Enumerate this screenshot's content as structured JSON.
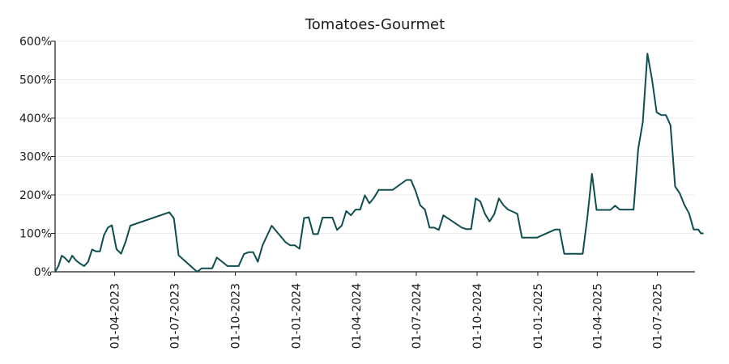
{
  "chart_data": {
    "type": "line",
    "title": "Tomatoes-Gourmet",
    "xlabel": "",
    "ylabel": "",
    "x_range": [
      "2023-01-01",
      "2025-08-27"
    ],
    "ylim": [
      0,
      600
    ],
    "y_ticks": [
      0,
      100,
      200,
      300,
      400,
      500,
      600
    ],
    "y_tick_labels": [
      "0%",
      "100%",
      "200%",
      "300%",
      "400%",
      "500%",
      "600%"
    ],
    "x_ticks": [
      "2023-04-01",
      "2023-07-01",
      "2023-10-01",
      "2024-01-01",
      "2024-04-01",
      "2024-07-01",
      "2024-10-01",
      "2025-01-01",
      "2025-04-01",
      "2025-07-01"
    ],
    "x_tick_labels": [
      "01-04-2023",
      "01-07-2023",
      "01-10-2023",
      "01-01-2024",
      "01-04-2024",
      "01-07-2024",
      "01-10-2024",
      "01-01-2025",
      "01-04-2025",
      "01-07-2025"
    ],
    "grid": true,
    "color": "#0f4d4f",
    "series": [
      {
        "points": [
          [
            "2023-01-01",
            0
          ],
          [
            "2023-01-06",
            15
          ],
          [
            "2023-01-11",
            42
          ],
          [
            "2023-01-16",
            36
          ],
          [
            "2023-01-22",
            25
          ],
          [
            "2023-01-27",
            42
          ],
          [
            "2023-02-02",
            29
          ],
          [
            "2023-02-08",
            21
          ],
          [
            "2023-02-14",
            15
          ],
          [
            "2023-02-20",
            26
          ],
          [
            "2023-02-26",
            58
          ],
          [
            "2023-03-04",
            53
          ],
          [
            "2023-03-10",
            53
          ],
          [
            "2023-03-16",
            95
          ],
          [
            "2023-03-22",
            115
          ],
          [
            "2023-03-28",
            121
          ],
          [
            "2023-04-04",
            59
          ],
          [
            "2023-04-11",
            47
          ],
          [
            "2023-04-18",
            79
          ],
          [
            "2023-04-25",
            120
          ],
          [
            "2023-06-23",
            155
          ],
          [
            "2023-06-30",
            139
          ],
          [
            "2023-07-07",
            43
          ],
          [
            "2023-08-04",
            0
          ],
          [
            "2023-08-11",
            9
          ],
          [
            "2023-08-27",
            9
          ],
          [
            "2023-09-03",
            37
          ],
          [
            "2023-09-19",
            15
          ],
          [
            "2023-10-06",
            15
          ],
          [
            "2023-10-14",
            46
          ],
          [
            "2023-10-21",
            51
          ],
          [
            "2023-10-28",
            51
          ],
          [
            "2023-11-04",
            26
          ],
          [
            "2023-11-11",
            68
          ],
          [
            "2023-11-25",
            120
          ],
          [
            "2023-12-16",
            77
          ],
          [
            "2023-12-23",
            69
          ],
          [
            "2023-12-30",
            69
          ],
          [
            "2024-01-06",
            60
          ],
          [
            "2024-01-13",
            140
          ],
          [
            "2024-01-20",
            142
          ],
          [
            "2024-01-27",
            98
          ],
          [
            "2024-02-03",
            98
          ],
          [
            "2024-02-10",
            141
          ],
          [
            "2024-02-25",
            141
          ],
          [
            "2024-03-03",
            109
          ],
          [
            "2024-03-10",
            120
          ],
          [
            "2024-03-17",
            158
          ],
          [
            "2024-03-24",
            147
          ],
          [
            "2024-03-31",
            162
          ],
          [
            "2024-04-07",
            162
          ],
          [
            "2024-04-14",
            199
          ],
          [
            "2024-04-21",
            178
          ],
          [
            "2024-04-28",
            193
          ],
          [
            "2024-05-05",
            213
          ],
          [
            "2024-05-26",
            213
          ],
          [
            "2024-06-16",
            239
          ],
          [
            "2024-06-23",
            239
          ],
          [
            "2024-06-30",
            210
          ],
          [
            "2024-07-07",
            173
          ],
          [
            "2024-07-14",
            162
          ],
          [
            "2024-07-21",
            115
          ],
          [
            "2024-07-28",
            115
          ],
          [
            "2024-08-04",
            109
          ],
          [
            "2024-08-11",
            147
          ],
          [
            "2024-09-08",
            115
          ],
          [
            "2024-09-15",
            111
          ],
          [
            "2024-09-22",
            111
          ],
          [
            "2024-09-29",
            191
          ],
          [
            "2024-10-06",
            183
          ],
          [
            "2024-10-13",
            151
          ],
          [
            "2024-10-20",
            131
          ],
          [
            "2024-10-27",
            150
          ],
          [
            "2024-11-03",
            191
          ],
          [
            "2024-11-10",
            173
          ],
          [
            "2024-11-17",
            162
          ],
          [
            "2024-12-01",
            151
          ],
          [
            "2024-12-08",
            89
          ],
          [
            "2024-12-31",
            89
          ],
          [
            "2025-01-27",
            110
          ],
          [
            "2025-02-03",
            110
          ],
          [
            "2025-02-10",
            47
          ],
          [
            "2025-03-10",
            47
          ],
          [
            "2025-03-17",
            141
          ],
          [
            "2025-03-24",
            255
          ],
          [
            "2025-03-31",
            161
          ],
          [
            "2025-04-21",
            161
          ],
          [
            "2025-04-28",
            172
          ],
          [
            "2025-05-05",
            162
          ],
          [
            "2025-05-26",
            162
          ],
          [
            "2025-06-02",
            320
          ],
          [
            "2025-06-09",
            390
          ],
          [
            "2025-06-16",
            568
          ],
          [
            "2025-06-23",
            500
          ],
          [
            "2025-06-30",
            415
          ],
          [
            "2025-07-07",
            408
          ],
          [
            "2025-07-14",
            408
          ],
          [
            "2025-07-21",
            381
          ],
          [
            "2025-07-28",
            222
          ],
          [
            "2025-08-04",
            204
          ],
          [
            "2025-08-11",
            174
          ],
          [
            "2025-08-18",
            152
          ],
          [
            "2025-08-25",
            110
          ],
          [
            "2025-08-28",
            110
          ],
          [
            "2025-09-01",
            110
          ],
          [
            "2025-09-05",
            100
          ],
          [
            "2025-09-08",
            100
          ]
        ]
      }
    ]
  }
}
